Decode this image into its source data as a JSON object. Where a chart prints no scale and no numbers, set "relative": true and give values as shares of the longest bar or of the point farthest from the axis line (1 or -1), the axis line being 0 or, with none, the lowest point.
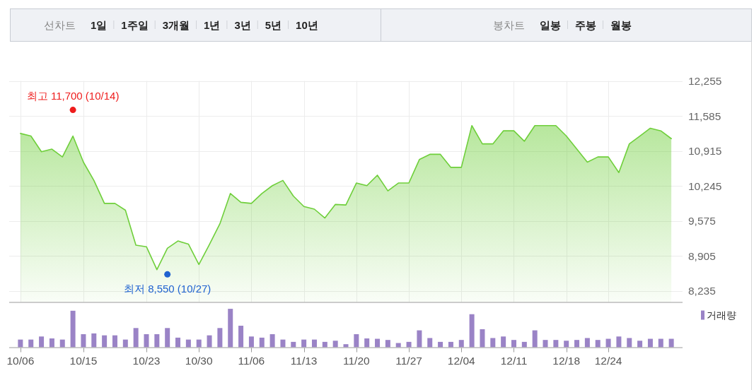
{
  "chart_data": [
    {
      "type": "other",
      "title": "선차트",
      "annotations": [
        "1일",
        "1주일",
        "3개월",
        "1년",
        "3년",
        "5년",
        "10년"
      ]
    },
    {
      "type": "other",
      "title": "봉차트",
      "annotations": [
        "일봉",
        "주봉",
        "월봉"
      ]
    },
    {
      "type": "area",
      "categories": [
        null,
        null,
        null,
        null,
        null,
        null,
        null,
        null,
        null,
        null,
        null,
        null,
        null,
        null,
        null,
        null,
        null,
        null,
        null,
        null,
        null,
        null,
        null,
        null,
        null,
        null,
        null,
        null,
        null,
        null,
        null,
        null,
        null,
        null,
        null,
        null,
        null,
        null,
        null,
        null,
        null,
        null,
        null,
        null,
        null,
        null,
        null,
        null,
        null,
        null,
        null,
        null,
        null,
        null,
        null,
        null,
        null,
        null,
        null,
        null,
        null,
        null,
        null
      ],
      "ylim": [
        8020,
        12255
      ],
      "yticks": [
        {
          "value": 8235,
          "label": "8,235"
        },
        {
          "value": 8905,
          "label": "8,905"
        },
        {
          "value": 9575,
          "label": "9,575"
        },
        {
          "value": 10245,
          "label": "10,245"
        },
        {
          "value": 10915,
          "label": "10,915"
        },
        {
          "value": 11585,
          "label": "11,585"
        },
        {
          "value": 12255,
          "label": "12,255"
        }
      ],
      "grid": true,
      "tick_labels": "y",
      "series": [
        {
          "type": "area",
          "color": "#6fcf3b",
          "values": [
            11250,
            11200,
            10900,
            10950,
            10800,
            11200,
            10700,
            10350,
            9910,
            9910,
            9780,
            9110,
            9080,
            8640,
            9050,
            9190,
            9130,
            8740,
            9120,
            9520,
            10100,
            9930,
            9910,
            10100,
            10250,
            10350,
            10050,
            9850,
            9800,
            9630,
            9890,
            9880,
            10300,
            10250,
            10450,
            10150,
            10300,
            10300,
            10750,
            10850,
            10850,
            10600,
            10600,
            11400,
            11050,
            11050,
            11300,
            11300,
            11100,
            11400,
            11400,
            11400,
            11200,
            10950,
            10700,
            10800,
            10800,
            10500,
            11050,
            11200,
            11350,
            11300,
            11150
          ]
        },
        {
          "type": "scatter",
          "marker": "circle",
          "color": "#ee1c1c",
          "values": [
            null,
            null,
            null,
            null,
            null,
            11700,
            null,
            null,
            null,
            null,
            null,
            null,
            null,
            null,
            null,
            null,
            null,
            null,
            null,
            null,
            null,
            null,
            null,
            null,
            null,
            null,
            null,
            null,
            null,
            null,
            null,
            null,
            null,
            null,
            null,
            null,
            null,
            null,
            null,
            null,
            null,
            null,
            null,
            null,
            null,
            null,
            null,
            null,
            null,
            null,
            null,
            null,
            null,
            null,
            null,
            null,
            null,
            null,
            null,
            null,
            null,
            null,
            null
          ]
        },
        {
          "type": "scatter",
          "marker": "circle",
          "color": "#1f62d0",
          "values": [
            null,
            null,
            null,
            null,
            null,
            null,
            null,
            null,
            null,
            null,
            null,
            null,
            null,
            null,
            8550,
            null,
            null,
            null,
            null,
            null,
            null,
            null,
            null,
            null,
            null,
            null,
            null,
            null,
            null,
            null,
            null,
            null,
            null,
            null,
            null,
            null,
            null,
            null,
            null,
            null,
            null,
            null,
            null,
            null,
            null,
            null,
            null,
            null,
            null,
            null,
            null,
            null,
            null,
            null,
            null,
            null,
            null,
            null,
            null,
            null,
            null,
            null,
            null
          ]
        }
      ],
      "annotations": [
        {
          "text": "최고 11,700 (10/14)",
          "y": 11700
        },
        {
          "text": "최저 8,550 (10/27)",
          "y": 8550
        }
      ]
    },
    {
      "type": "bar",
      "relative": true,
      "categories": [
        "10/06",
        null,
        null,
        null,
        null,
        null,
        "10/15",
        null,
        null,
        null,
        null,
        null,
        "10/23",
        null,
        null,
        null,
        null,
        "10/30",
        null,
        null,
        null,
        null,
        "11/06",
        null,
        null,
        null,
        null,
        "11/13",
        null,
        null,
        null,
        null,
        "11/20",
        null,
        null,
        null,
        null,
        "11/27",
        null,
        null,
        null,
        null,
        "12/04",
        null,
        null,
        null,
        null,
        "12/11",
        null,
        null,
        null,
        null,
        "12/18",
        null,
        null,
        null,
        "12/24",
        null,
        null,
        null,
        null,
        null,
        null
      ],
      "tick_labels": "x",
      "legend": "top right",
      "series": [
        {
          "name": "거래량",
          "color": "#9a83c6",
          "values": [
            0.2,
            0.2,
            0.28,
            0.23,
            0.2,
            0.95,
            0.34,
            0.36,
            0.31,
            0.31,
            0.2,
            0.5,
            0.34,
            0.34,
            0.5,
            0.25,
            0.2,
            0.2,
            0.31,
            0.5,
            1,
            0.56,
            0.28,
            0.25,
            0.34,
            0.2,
            0.14,
            0.2,
            0.2,
            0.14,
            0.17,
            0.08,
            0.34,
            0.23,
            0.22,
            0.19,
            0.11,
            0.14,
            0.44,
            0.24,
            0.14,
            0.14,
            0.19,
            0.86,
            0.47,
            0.24,
            0.28,
            0.19,
            0.14,
            0.44,
            0.19,
            0.19,
            0.17,
            0.19,
            0.24,
            0.19,
            0.22,
            0.28,
            0.24,
            0.17,
            0.22,
            0.22,
            0.22
          ]
        }
      ]
    }
  ]
}
